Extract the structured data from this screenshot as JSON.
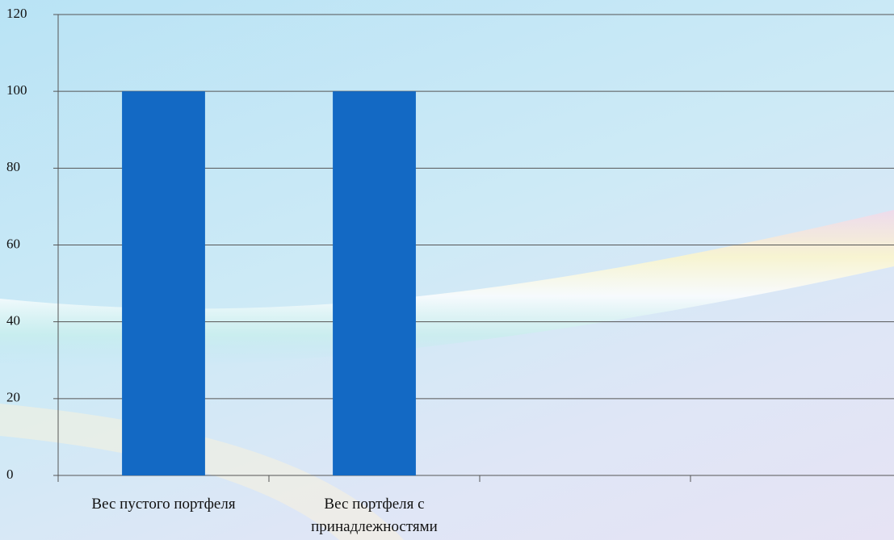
{
  "chart_data": {
    "type": "bar",
    "categories": [
      "Вес пустого портфеля",
      "Вес портфеля с принадлежностями",
      null,
      null
    ],
    "values": [
      100,
      100,
      null,
      null
    ],
    "color": "#1369c4",
    "ylim": [
      0,
      120
    ],
    "yticks": [
      0,
      20,
      40,
      60,
      80,
      100,
      120
    ],
    "grid": true
  }
}
